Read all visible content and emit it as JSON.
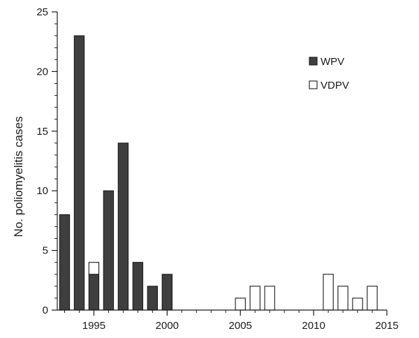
{
  "chart_data": {
    "type": "bar",
    "stacked": true,
    "title": "",
    "xlabel": "",
    "ylabel": "No. poliomyelitis cases",
    "x": [
      1993,
      1994,
      1995,
      1996,
      1997,
      1998,
      1999,
      2000,
      2001,
      2002,
      2003,
      2004,
      2005,
      2006,
      2007,
      2008,
      2009,
      2010,
      2011,
      2012,
      2013,
      2014
    ],
    "xlim": [
      1992.5,
      2015
    ],
    "ylim": [
      0,
      25
    ],
    "xticks": [
      1995,
      2000,
      2005,
      2010,
      2015
    ],
    "yticks": [
      0,
      5,
      10,
      15,
      20,
      25
    ],
    "y_minor_step": 1,
    "grid": false,
    "legend_position": "top-right",
    "series": [
      {
        "name": "WPV",
        "color": "#3f3f3f",
        "values": [
          8,
          23,
          3,
          10,
          14,
          4,
          2,
          3,
          0,
          0,
          0,
          0,
          0,
          0,
          0,
          0,
          0,
          0,
          0,
          0,
          0,
          0
        ]
      },
      {
        "name": "VDPV",
        "color": "#ffffff",
        "values": [
          0,
          0,
          1,
          0,
          0,
          0,
          0,
          0,
          0,
          0,
          0,
          0,
          1,
          2,
          2,
          0,
          0,
          0,
          3,
          2,
          1,
          2
        ]
      }
    ]
  }
}
